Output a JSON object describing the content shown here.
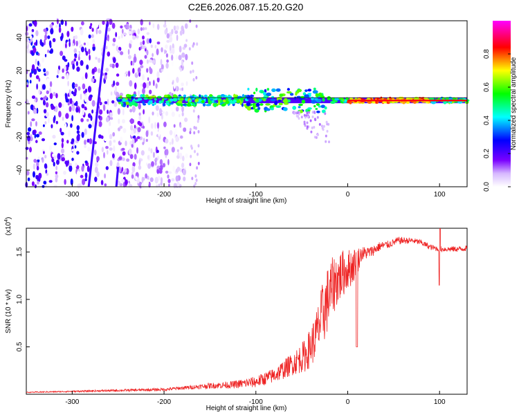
{
  "title": "C2E6.2026.087.15.20.G20",
  "chart_data": [
    {
      "type": "heatmap",
      "name": "spectrogram",
      "xlabel": "Height of straight line (km)",
      "ylabel": "Frequency (Hz)",
      "xlim": [
        -350,
        130
      ],
      "ylim": [
        -50,
        50
      ],
      "xticks": [
        -300,
        -200,
        -100,
        0,
        100
      ],
      "xtick_labels": [
        "-300",
        "-200",
        "-100",
        "0",
        "100"
      ],
      "yticks": [
        -40,
        -20,
        0,
        20,
        40
      ],
      "ytick_labels": [
        "-40",
        "-20",
        "0",
        "20",
        "40"
      ],
      "colorbar": {
        "label": "Normalized spectral amplitude",
        "range": [
          0,
          1
        ],
        "ticks": [
          0.0,
          0.2,
          0.4,
          0.6,
          0.8
        ],
        "tick_labels": [
          "0.0",
          "0.2",
          "0.4",
          "0.6",
          "0.8"
        ],
        "colors": [
          "#ffffff",
          "#7a00ff",
          "#0000ff",
          "#00ffff",
          "#00ff00",
          "#ffff00",
          "#ff0000",
          "#ff00ff"
        ]
      },
      "features": [
        {
          "name": "carrier-line",
          "x_start": -250,
          "x_end": 130,
          "freq": 2,
          "amplitude": 0.85
        },
        {
          "name": "diagonal-trace",
          "points": [
            [
              -262,
              48
            ],
            [
              -282,
              -50
            ]
          ]
        },
        {
          "name": "noise-region",
          "x_start": -350,
          "x_end": -175
        }
      ]
    },
    {
      "type": "line",
      "name": "snr",
      "xlabel": "Height of straight line (km)",
      "ylabel": "SNR (10 * v/v)",
      "exponent_label": "(x10",
      "exponent_sup": "4",
      "exponent_close": ")",
      "xlim": [
        -350,
        130
      ],
      "ylim": [
        0,
        1.75
      ],
      "xticks": [
        -300,
        -200,
        -100,
        0,
        100
      ],
      "xtick_labels": [
        "-300",
        "-200",
        "-100",
        "0",
        "100"
      ],
      "yticks": [
        0.5,
        1.0,
        1.5
      ],
      "ytick_labels": [
        "0.5",
        "1.0",
        "1.5"
      ],
      "series": [
        {
          "name": "SNR",
          "color": "#ee2222",
          "x": [
            -350,
            -300,
            -250,
            -200,
            -175,
            -150,
            -125,
            -100,
            -80,
            -60,
            -45,
            -35,
            -27,
            -20,
            -14,
            -8,
            -2,
            5,
            10,
            15,
            25,
            35,
            45,
            55,
            70,
            80,
            90,
            100,
            110,
            120,
            130
          ],
          "y": [
            0.02,
            0.03,
            0.04,
            0.05,
            0.07,
            0.09,
            0.1,
            0.13,
            0.2,
            0.32,
            0.42,
            0.6,
            0.85,
            1.05,
            1.18,
            1.25,
            1.3,
            1.35,
            1.4,
            1.48,
            1.5,
            1.56,
            1.58,
            1.62,
            1.62,
            1.6,
            1.55,
            1.53,
            1.53,
            1.53,
            1.54
          ],
          "noise": [
            0.005,
            0.008,
            0.012,
            0.015,
            0.02,
            0.03,
            0.04,
            0.06,
            0.08,
            0.12,
            0.18,
            0.25,
            0.35,
            0.35,
            0.3,
            0.28,
            0.22,
            0.2,
            0.15,
            0.08,
            0.06,
            0.05,
            0.04,
            0.04,
            0.03,
            0.03,
            0.03,
            0.03,
            0.03,
            0.03,
            0.03
          ]
        }
      ]
    }
  ]
}
